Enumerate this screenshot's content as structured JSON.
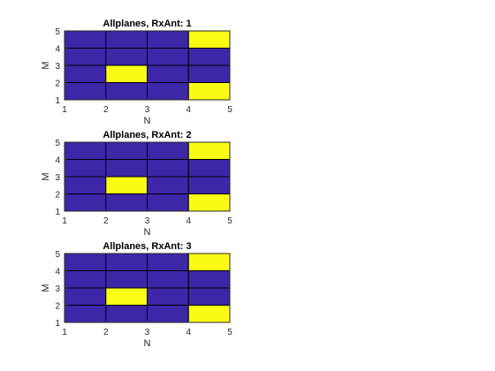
{
  "colors": {
    "background": "#ffffff",
    "low": "#3e26a8",
    "high": "#f9fb15",
    "grid": "#262626",
    "text": "#262626"
  },
  "chart_data": [
    {
      "type": "heatmap",
      "title": "Allplanes, RxAnt: 1",
      "xlabel": "N",
      "ylabel": "M",
      "xlim": [
        1,
        5
      ],
      "ylim": [
        1,
        5
      ],
      "xticks": [
        "1",
        "2",
        "3",
        "4",
        "5"
      ],
      "yticks": [
        "1",
        "2",
        "3",
        "4",
        "5"
      ],
      "cells_rows_bottom_to_top": [
        [
          0,
          0,
          0,
          1
        ],
        [
          0,
          1,
          0,
          0
        ],
        [
          0,
          0,
          0,
          0
        ],
        [
          0,
          0,
          0,
          1
        ]
      ]
    },
    {
      "type": "heatmap",
      "title": "Allplanes, RxAnt: 2",
      "xlabel": "N",
      "ylabel": "M",
      "xlim": [
        1,
        5
      ],
      "ylim": [
        1,
        5
      ],
      "xticks": [
        "1",
        "2",
        "3",
        "4",
        "5"
      ],
      "yticks": [
        "1",
        "2",
        "3",
        "4",
        "5"
      ],
      "cells_rows_bottom_to_top": [
        [
          0,
          0,
          0,
          1
        ],
        [
          0,
          1,
          0,
          0
        ],
        [
          0,
          0,
          0,
          0
        ],
        [
          0,
          0,
          0,
          1
        ]
      ]
    },
    {
      "type": "heatmap",
      "title": "Allplanes, RxAnt: 3",
      "xlabel": "N",
      "ylabel": "M",
      "xlim": [
        1,
        5
      ],
      "ylim": [
        1,
        5
      ],
      "xticks": [
        "1",
        "2",
        "3",
        "4",
        "5"
      ],
      "yticks": [
        "1",
        "2",
        "3",
        "4",
        "5"
      ],
      "cells_rows_bottom_to_top": [
        [
          0,
          0,
          0,
          1
        ],
        [
          0,
          1,
          0,
          0
        ],
        [
          0,
          0,
          0,
          0
        ],
        [
          0,
          0,
          0,
          1
        ]
      ]
    }
  ]
}
